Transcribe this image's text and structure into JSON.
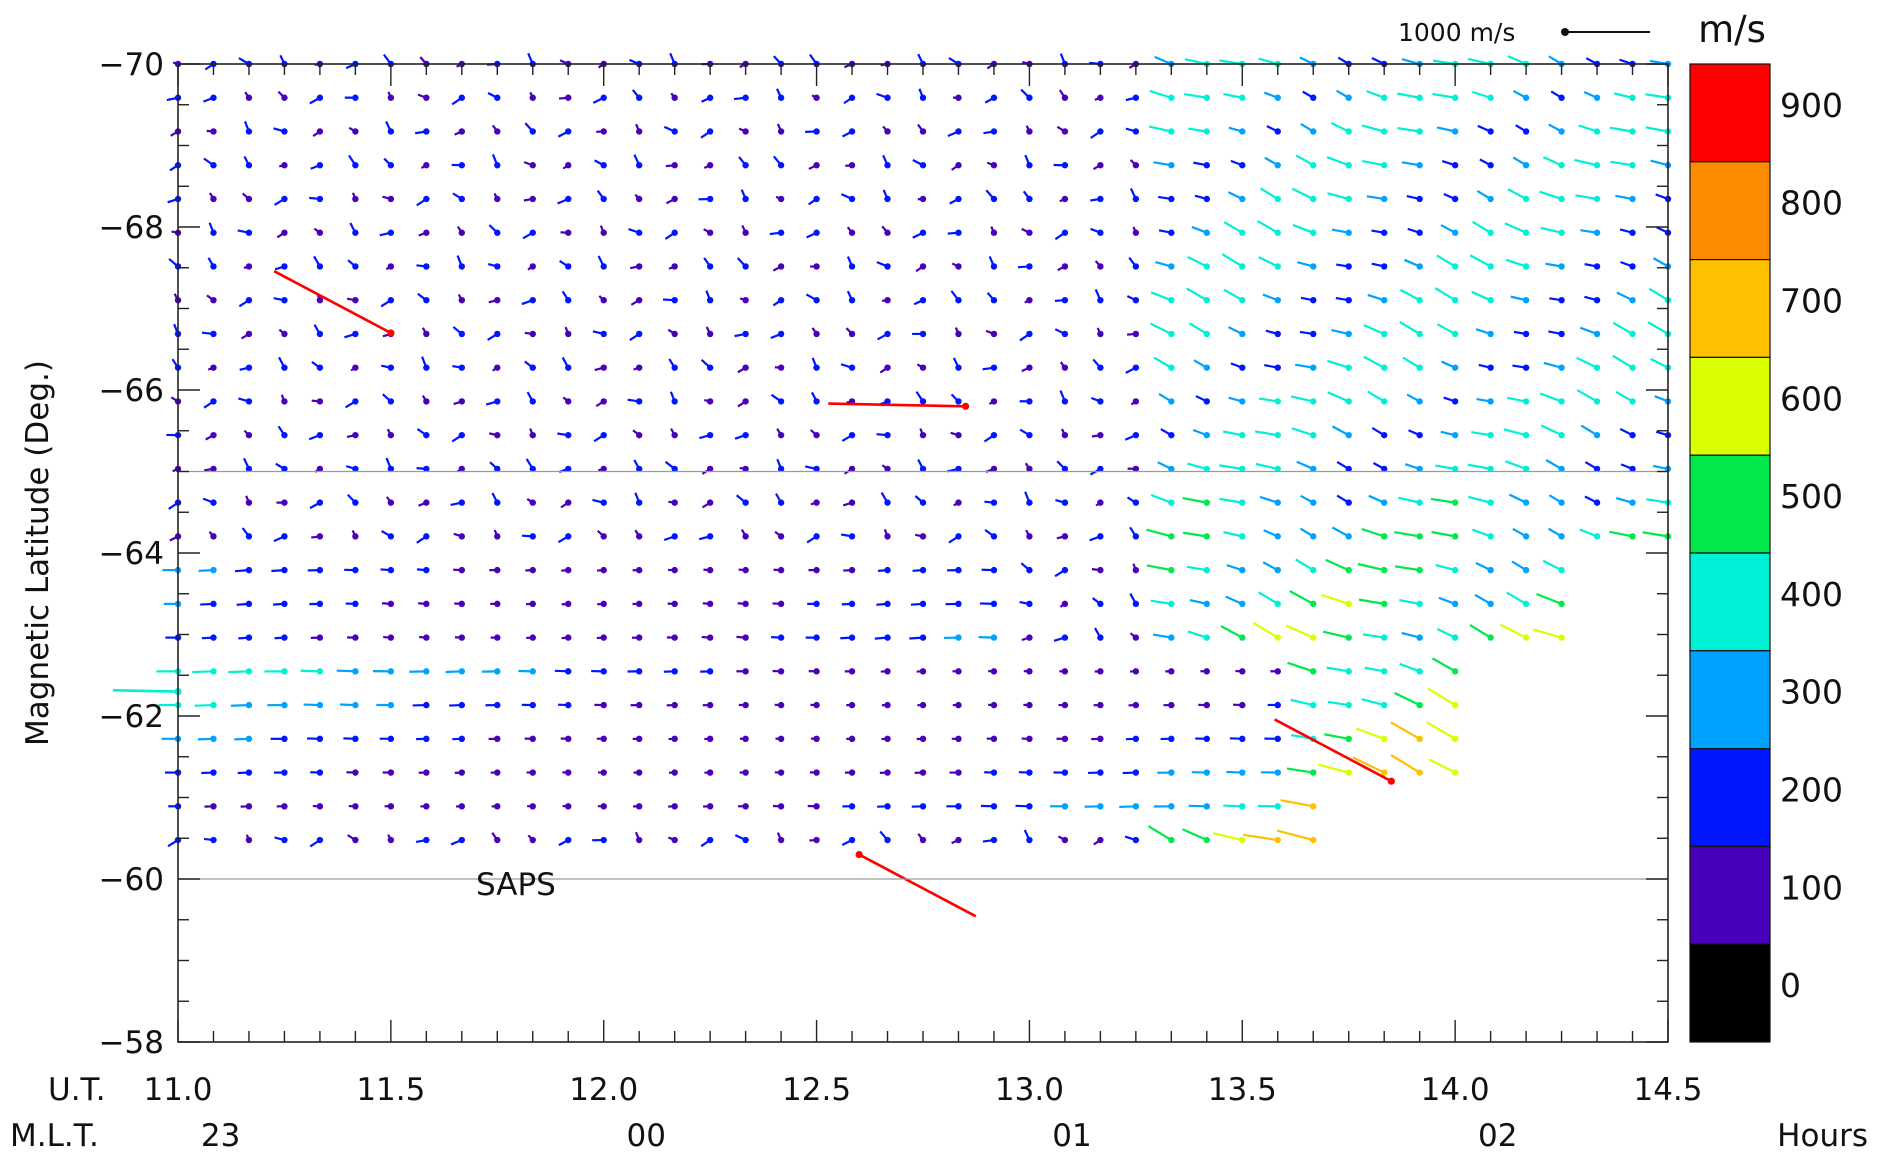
{
  "chart_data": {
    "type": "vector-field",
    "ylabel": "Magnetic Latitude (Deg.)",
    "xlim": [
      11.0,
      14.5
    ],
    "ylim": [
      -58,
      -70
    ],
    "x_ticks": [
      "11.0",
      "11.5",
      "12.0",
      "12.5",
      "13.0",
      "13.5",
      "14.0",
      "14.5"
    ],
    "x_tick_values": [
      11.0,
      11.5,
      12.0,
      12.5,
      13.0,
      13.5,
      14.0,
      14.5
    ],
    "y_ticks": [
      "−70",
      "−68",
      "−66",
      "−64",
      "−62",
      "−60",
      "−58"
    ],
    "y_tick_values": [
      -70,
      -68,
      -66,
      -64,
      -62,
      -60,
      -58
    ],
    "x_row1_label": "U.T.",
    "x_row2_label": "M.L.T.",
    "mlt_ticks": [
      "23",
      "00",
      "01",
      "02"
    ],
    "mlt_tick_values": [
      11.1,
      12.1,
      13.1,
      14.1
    ],
    "x_unit": "Hours",
    "reference_lines": [
      -65,
      -60
    ],
    "annotation": {
      "text": "SAPS",
      "x": 11.8,
      "y": -60.1
    },
    "scale_vector": {
      "label": "1000 m/s",
      "speed": 1000
    },
    "colorbar": {
      "unit": "m/s",
      "ticks": [
        "900",
        "800",
        "700",
        "600",
        "500",
        "400",
        "300",
        "200",
        "100",
        "0"
      ],
      "tick_values": [
        900,
        800,
        700,
        600,
        500,
        400,
        300,
        200,
        100,
        0
      ],
      "colors": [
        "#ff0000",
        "#ff8c00",
        "#ffc000",
        "#d9ff00",
        "#00e84a",
        "#00f0d6",
        "#00a2ff",
        "#0016ff",
        "#4a00b8",
        "#000000"
      ]
    },
    "grid": false,
    "sample_vectors": [
      {
        "x": 11.5,
        "y": -66.7,
        "speed": 950,
        "direction": "northwest"
      },
      {
        "x": 12.85,
        "y": -65.8,
        "speed": 950,
        "direction": "west"
      },
      {
        "x": 11.0,
        "y": -62.3,
        "speed": 450,
        "direction": "west"
      },
      {
        "x": 13.85,
        "y": -61.2,
        "speed": 950,
        "direction": "northwest"
      },
      {
        "x": 12.6,
        "y": -60.3,
        "speed": 950,
        "direction": "southeast"
      }
    ]
  }
}
